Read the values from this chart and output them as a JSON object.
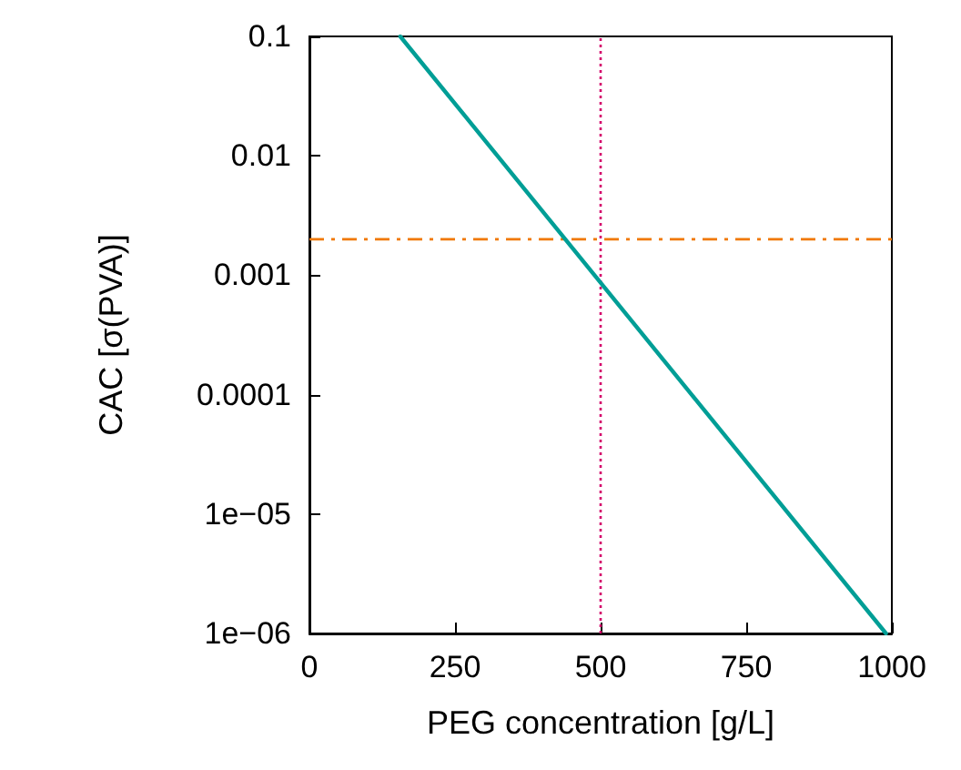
{
  "chart_data": {
    "type": "line",
    "xlabel": "PEG concentration [g/L]",
    "ylabel": "CAC [σ(PVA)]",
    "log": "y",
    "grid": false,
    "marker": "none",
    "line_style": "solid",
    "xlim": [
      0,
      1000
    ],
    "xticks": [
      0,
      250,
      500,
      750,
      1000
    ],
    "ylim": [
      1e-06,
      0.1
    ],
    "yticks": [
      {
        "value": 1e-06,
        "label": "1e−06"
      },
      {
        "value": 1e-05,
        "label": "1e−05"
      },
      {
        "value": 0.0001,
        "label": "0.0001"
      },
      {
        "value": 0.001,
        "label": "0.001"
      },
      {
        "value": 0.01,
        "label": "0.01"
      },
      {
        "value": 0.1,
        "label": "0.1"
      }
    ],
    "series": [
      {
        "color": "#009e96",
        "x": [
          156,
          990
        ],
        "values": [
          0.1,
          1e-06
        ]
      }
    ],
    "ref_lines": [
      {
        "axis": "y",
        "value": 0.002,
        "color": "#f07800",
        "line_style": "dashed"
      },
      {
        "axis": "x",
        "value": 500,
        "color": "#d4006a",
        "line_style": "dotted"
      }
    ]
  }
}
